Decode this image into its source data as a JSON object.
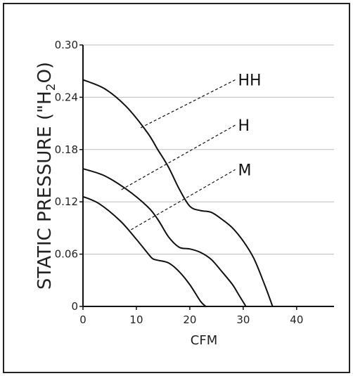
{
  "chart_data": {
    "type": "line",
    "xlabel": "CFM",
    "ylabel_parts": {
      "prefix": "STATIC PRESSURE (\"H",
      "sub": "2",
      "suffix": "O)"
    },
    "xlim": [
      0,
      47
    ],
    "ylim": [
      0,
      0.3
    ],
    "x_ticks": [
      0,
      10,
      20,
      30,
      40
    ],
    "x_tick_labels": [
      "0",
      "10",
      "20",
      "30",
      "40"
    ],
    "y_ticks": [
      0,
      0.06,
      0.12,
      0.18,
      0.24,
      0.3
    ],
    "y_tick_labels": [
      "0",
      "0.06",
      "0.12",
      "0.18",
      "0.24",
      "0.30"
    ],
    "grid": "horizontal",
    "series": [
      {
        "name": "HH",
        "x": [
          0,
          4,
          8,
          12,
          14,
          16,
          18,
          20,
          22,
          24,
          26,
          28,
          30,
          32,
          34,
          35.5
        ],
        "y": [
          0.26,
          0.25,
          0.23,
          0.2,
          0.18,
          0.16,
          0.135,
          0.115,
          0.11,
          0.108,
          0.1,
          0.09,
          0.075,
          0.055,
          0.025,
          0
        ],
        "label_x": [
          10.8,
          28.5
        ],
        "label_y": [
          0.205,
          0.26
        ]
      },
      {
        "name": "H",
        "x": [
          0,
          4,
          8,
          12,
          14,
          16,
          18,
          20,
          22,
          24,
          26,
          28,
          29,
          30.5
        ],
        "y": [
          0.158,
          0.15,
          0.135,
          0.115,
          0.1,
          0.08,
          0.068,
          0.066,
          0.062,
          0.054,
          0.04,
          0.025,
          0.015,
          0
        ],
        "label_x": [
          7.2,
          28.5
        ],
        "label_y": [
          0.134,
          0.208
        ]
      },
      {
        "name": "M",
        "x": [
          0,
          3,
          7,
          10,
          12,
          13,
          14,
          16,
          18,
          20,
          22,
          23
        ],
        "y": [
          0.126,
          0.118,
          0.098,
          0.077,
          0.062,
          0.055,
          0.053,
          0.05,
          0.04,
          0.025,
          0.006,
          0
        ],
        "label_x": [
          9,
          28.5
        ],
        "label_y": [
          0.088,
          0.157
        ]
      }
    ]
  }
}
